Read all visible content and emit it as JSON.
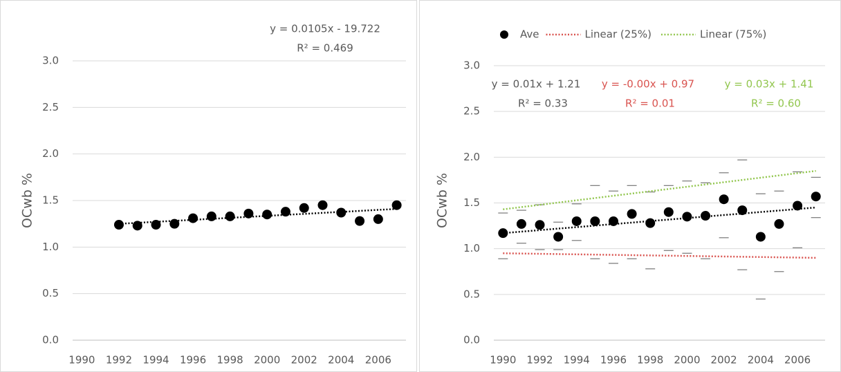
{
  "chart_data": [
    {
      "type": "scatter",
      "y_label": "OCwb %",
      "xlim": [
        1989.5,
        2007.5
      ],
      "xticks": [
        1990,
        1992,
        1994,
        1996,
        1998,
        2000,
        2002,
        2004,
        2006
      ],
      "ylim": [
        0,
        3
      ],
      "yticks": [
        {
          "value": 0,
          "label": "0.0"
        },
        {
          "value": 0.5,
          "label": "0.5"
        },
        {
          "value": 1,
          "label": "1.0"
        },
        {
          "value": 1.5,
          "label": "1.5"
        },
        {
          "value": 2,
          "label": "2.0"
        },
        {
          "value": 2.5,
          "label": "2.5"
        },
        {
          "value": 3,
          "label": "3.0"
        }
      ],
      "grid": true,
      "series": [
        {
          "color": "#000000",
          "x": [
            1992,
            1993,
            1994,
            1995,
            1996,
            1997,
            1998,
            1999,
            2000,
            2001,
            2002,
            2003,
            2004,
            2005,
            2006,
            2007
          ],
          "values": [
            1.24,
            1.23,
            1.24,
            1.25,
            1.31,
            1.33,
            1.33,
            1.36,
            1.35,
            1.38,
            1.42,
            1.45,
            1.37,
            1.28,
            1.3,
            1.45
          ]
        }
      ],
      "trendlines": [
        {
          "color": "#000000",
          "x": [
            1992,
            2007
          ],
          "values": [
            1.25,
            1.41
          ],
          "equation": "y = 0.0105x - 19.722",
          "r_squared": "R² = 0.469"
        }
      ]
    },
    {
      "type": "scatter",
      "y_label": "OCwb %",
      "legend": "top",
      "xlim": [
        1989.5,
        2007.5
      ],
      "xticks": [
        1990,
        1992,
        1994,
        1996,
        1998,
        2000,
        2002,
        2004,
        2006
      ],
      "ylim": [
        0,
        3
      ],
      "yticks": [
        {
          "value": 0,
          "label": "0.0"
        },
        {
          "value": 0.5,
          "label": "0.5"
        },
        {
          "value": 1,
          "label": "1.0"
        },
        {
          "value": 1.5,
          "label": "1.5"
        },
        {
          "value": 2,
          "label": "2.0"
        },
        {
          "value": 2.5,
          "label": "2.5"
        },
        {
          "value": 3,
          "label": "3.0"
        }
      ],
      "grid": true,
      "series": [
        {
          "name": "Ave",
          "color": "#000000",
          "x": [
            1990,
            1991,
            1992,
            1993,
            1994,
            1995,
            1996,
            1997,
            1998,
            1999,
            2000,
            2001,
            2002,
            2003,
            2004,
            2005,
            2006,
            2007
          ],
          "values": [
            1.17,
            1.27,
            1.26,
            1.13,
            1.3,
            1.3,
            1.3,
            1.38,
            1.28,
            1.4,
            1.35,
            1.36,
            1.54,
            1.42,
            1.13,
            1.27,
            1.47,
            1.57
          ]
        }
      ],
      "range_marks": [
        {
          "color": "#808080",
          "values": [
            0.89,
            1.06,
            0.99,
            0.99,
            1.09,
            0.89,
            0.84,
            0.89,
            0.78,
            0.98,
            0.95,
            0.89,
            1.12,
            0.77,
            0.45,
            0.75,
            1.01,
            1.34
          ]
        },
        {
          "color": "#808080",
          "values": [
            1.39,
            1.42,
            1.48,
            1.29,
            1.49,
            1.69,
            1.63,
            1.69,
            1.62,
            1.69,
            1.74,
            1.72,
            1.83,
            1.97,
            1.6,
            1.63,
            1.84,
            1.78
          ]
        }
      ],
      "trendlines": [
        {
          "color": "#000000",
          "x": [
            1990,
            2007
          ],
          "values": [
            1.17,
            1.45
          ],
          "equation": "y = 0.01x + 1.21",
          "r_squared": "R² = 0.33"
        },
        {
          "name": "Linear (25%)",
          "color": "#d9534f",
          "x": [
            1990,
            2007
          ],
          "values": [
            0.95,
            0.9
          ],
          "equation": "y = -0.00x + 0.97",
          "r_squared": "R² = 0.01"
        },
        {
          "name": "Linear (75%)",
          "color": "#92c64e",
          "x": [
            1990,
            2007
          ],
          "values": [
            1.43,
            1.85
          ],
          "equation": "y = 0.03x + 1.41",
          "r_squared": "R² = 0.60"
        }
      ]
    }
  ]
}
